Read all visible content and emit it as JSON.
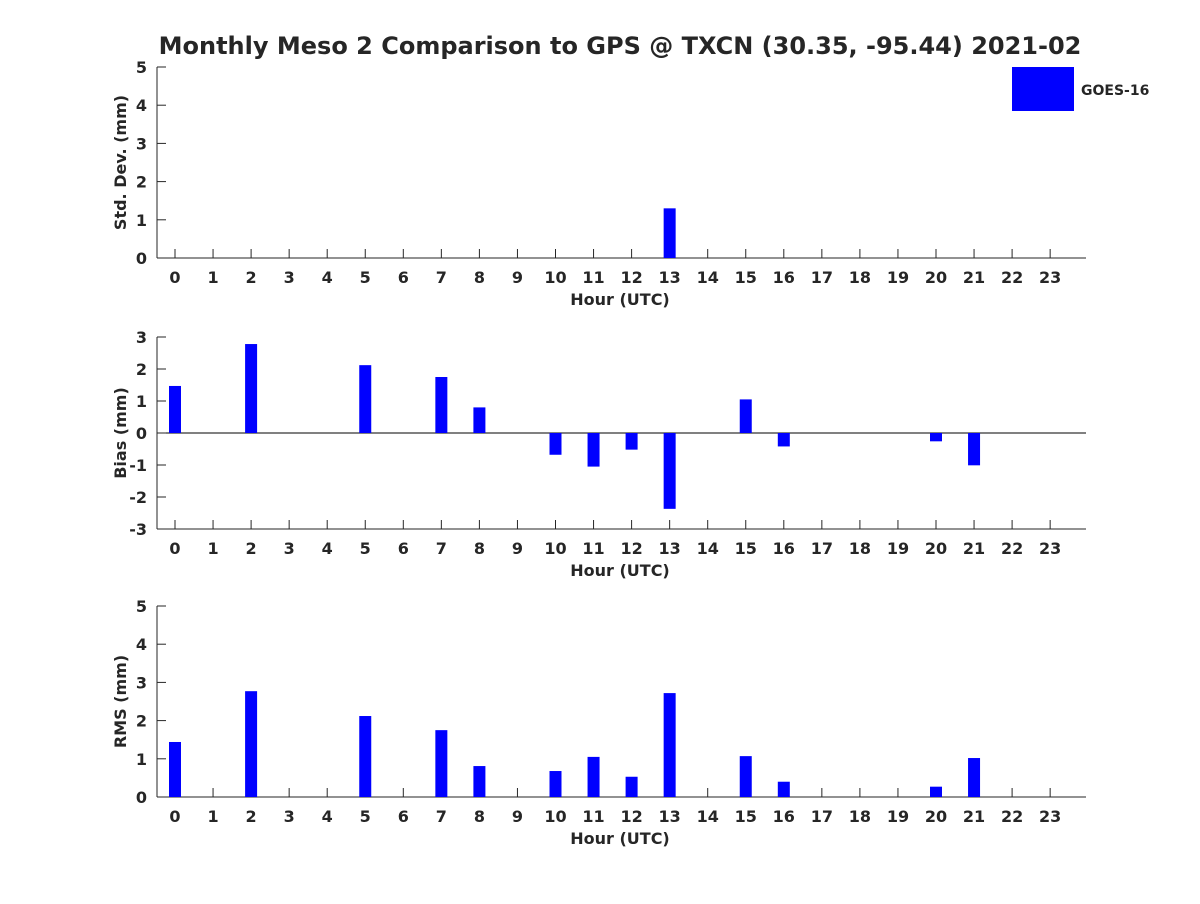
{
  "title": "Monthly Meso 2 Comparison to GPS @ TXCN (30.35, -95.44) 2021-02",
  "legend": {
    "label": "GOES-16",
    "color": "#0000ff",
    "placement": "top-right"
  },
  "colors": {
    "bar": "#0000ff",
    "axis": "#262626",
    "text": "#262626"
  },
  "chart_data": [
    {
      "type": "bar",
      "categories": [
        "0",
        "1",
        "2",
        "3",
        "4",
        "5",
        "6",
        "7",
        "8",
        "9",
        "10",
        "11",
        "12",
        "13",
        "14",
        "15",
        "16",
        "17",
        "18",
        "19",
        "20",
        "21",
        "22",
        "23"
      ],
      "series": [
        {
          "name": "GOES-16",
          "values": [
            null,
            null,
            null,
            null,
            null,
            null,
            null,
            null,
            null,
            null,
            null,
            null,
            null,
            1.3,
            null,
            null,
            null,
            null,
            null,
            null,
            null,
            null,
            null,
            null
          ]
        }
      ],
      "xlabel": "Hour (UTC)",
      "ylabel": "Std. Dev. (mm)",
      "ylim": [
        0,
        5
      ],
      "yticks": [
        0,
        1,
        2,
        3,
        4,
        5
      ],
      "zero_line": false,
      "grid": false
    },
    {
      "type": "bar",
      "categories": [
        "0",
        "1",
        "2",
        "3",
        "4",
        "5",
        "6",
        "7",
        "8",
        "9",
        "10",
        "11",
        "12",
        "13",
        "14",
        "15",
        "16",
        "17",
        "18",
        "19",
        "20",
        "21",
        "22",
        "23"
      ],
      "series": [
        {
          "name": "GOES-16",
          "values": [
            1.47,
            null,
            2.78,
            null,
            null,
            2.12,
            null,
            1.75,
            0.8,
            null,
            -0.68,
            -1.05,
            -0.52,
            -2.37,
            null,
            1.05,
            -0.42,
            null,
            null,
            null,
            -0.26,
            -1.01,
            null,
            null
          ]
        }
      ],
      "xlabel": "Hour (UTC)",
      "ylabel": "Bias (mm)",
      "ylim": [
        -3,
        3
      ],
      "yticks": [
        -3,
        -2,
        -1,
        0,
        1,
        2,
        3
      ],
      "zero_line": true,
      "grid": false
    },
    {
      "type": "bar",
      "categories": [
        "0",
        "1",
        "2",
        "3",
        "4",
        "5",
        "6",
        "7",
        "8",
        "9",
        "10",
        "11",
        "12",
        "13",
        "14",
        "15",
        "16",
        "17",
        "18",
        "19",
        "20",
        "21",
        "22",
        "23"
      ],
      "series": [
        {
          "name": "GOES-16",
          "values": [
            1.44,
            null,
            2.77,
            null,
            null,
            2.12,
            null,
            1.75,
            0.81,
            null,
            0.68,
            1.05,
            0.53,
            2.72,
            null,
            1.07,
            0.4,
            null,
            null,
            null,
            0.27,
            1.02,
            null,
            null
          ]
        }
      ],
      "xlabel": "Hour (UTC)",
      "ylabel": "RMS (mm)",
      "ylim": [
        0,
        5
      ],
      "yticks": [
        0,
        1,
        2,
        3,
        4,
        5
      ],
      "zero_line": false,
      "grid": false
    }
  ]
}
